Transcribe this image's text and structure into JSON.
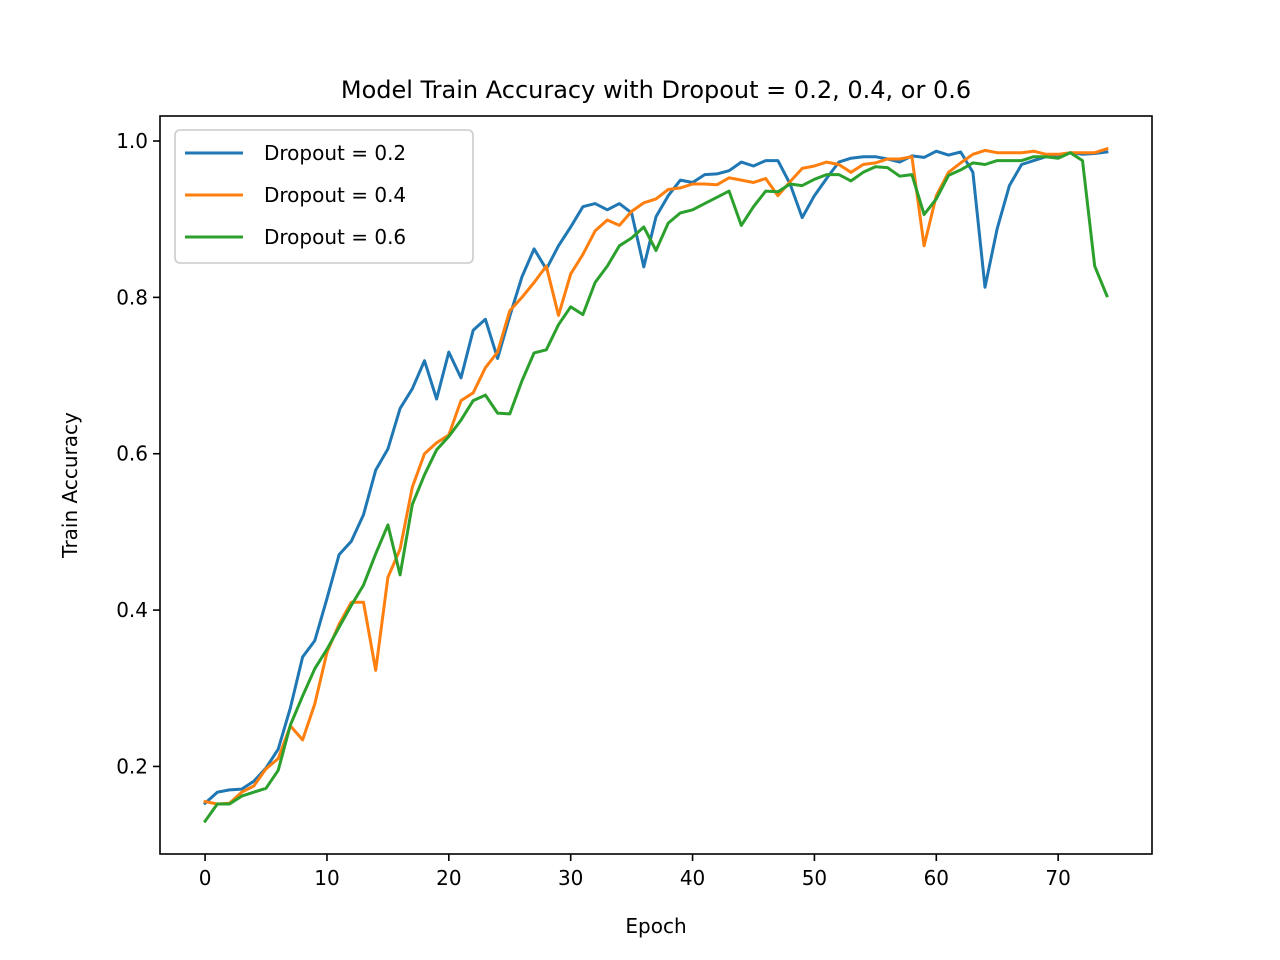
{
  "chart_data": {
    "type": "line",
    "title": "Model Train Accuracy with Dropout = 0.2, 0.4, or 0.6",
    "xlabel": "Epoch",
    "ylabel": "Train Accuracy",
    "xlim": [
      -3.7,
      77.7
    ],
    "ylim": [
      0.088,
      1.032
    ],
    "xticks": [
      0,
      10,
      20,
      30,
      40,
      50,
      60,
      70
    ],
    "yticks": [
      0.2,
      0.4,
      0.6,
      0.8,
      1.0
    ],
    "ytick_labels": [
      "0.2",
      "0.4",
      "0.6",
      "0.8",
      "1.0"
    ],
    "grid": false,
    "legend_position": "top-left",
    "series": [
      {
        "name": "Dropout = 0.2",
        "color": "#1f77b4",
        "values": [
          0.153,
          0.167,
          0.17,
          0.171,
          0.181,
          0.198,
          0.222,
          0.275,
          0.34,
          0.361,
          0.415,
          0.471,
          0.488,
          0.522,
          0.579,
          0.606,
          0.658,
          0.683,
          0.719,
          0.67,
          0.73,
          0.697,
          0.758,
          0.772,
          0.722,
          0.776,
          0.826,
          0.862,
          0.836,
          0.866,
          0.89,
          0.916,
          0.92,
          0.912,
          0.92,
          0.908,
          0.839,
          0.903,
          0.93,
          0.95,
          0.947,
          0.957,
          0.958,
          0.962,
          0.973,
          0.968,
          0.975,
          0.975,
          0.945,
          0.902,
          0.93,
          0.952,
          0.973,
          0.978,
          0.98,
          0.98,
          0.977,
          0.973,
          0.981,
          0.979,
          0.987,
          0.982,
          0.986,
          0.96,
          0.813,
          0.888,
          0.943,
          0.97,
          0.975,
          0.98,
          0.982,
          0.985,
          0.983,
          0.984,
          0.986
        ]
      },
      {
        "name": "Dropout = 0.4",
        "color": "#ff7f0e",
        "values": [
          0.155,
          0.152,
          0.153,
          0.167,
          0.175,
          0.197,
          0.21,
          0.252,
          0.234,
          0.28,
          0.346,
          0.382,
          0.41,
          0.41,
          0.323,
          0.442,
          0.478,
          0.557,
          0.6,
          0.614,
          0.624,
          0.668,
          0.678,
          0.71,
          0.73,
          0.783,
          0.8,
          0.819,
          0.84,
          0.777,
          0.83,
          0.855,
          0.885,
          0.899,
          0.892,
          0.91,
          0.921,
          0.926,
          0.938,
          0.94,
          0.945,
          0.945,
          0.944,
          0.953,
          0.95,
          0.947,
          0.952,
          0.93,
          0.948,
          0.965,
          0.968,
          0.973,
          0.97,
          0.96,
          0.97,
          0.972,
          0.977,
          0.977,
          0.98,
          0.866,
          0.93,
          0.96,
          0.972,
          0.983,
          0.988,
          0.985,
          0.985,
          0.985,
          0.987,
          0.983,
          0.983,
          0.985,
          0.985,
          0.985,
          0.99
        ]
      },
      {
        "name": "Dropout = 0.6",
        "color": "#2ca02c",
        "values": [
          0.13,
          0.152,
          0.152,
          0.162,
          0.167,
          0.172,
          0.195,
          0.253,
          0.29,
          0.325,
          0.35,
          0.378,
          0.406,
          0.432,
          0.472,
          0.509,
          0.445,
          0.535,
          0.573,
          0.605,
          0.622,
          0.643,
          0.668,
          0.675,
          0.652,
          0.651,
          0.693,
          0.729,
          0.733,
          0.765,
          0.788,
          0.778,
          0.819,
          0.84,
          0.866,
          0.876,
          0.89,
          0.86,
          0.895,
          0.908,
          0.912,
          0.92,
          0.928,
          0.936,
          0.892,
          0.916,
          0.936,
          0.935,
          0.945,
          0.943,
          0.951,
          0.957,
          0.957,
          0.949,
          0.96,
          0.967,
          0.966,
          0.955,
          0.957,
          0.906,
          0.926,
          0.956,
          0.963,
          0.972,
          0.97,
          0.975,
          0.975,
          0.975,
          0.98,
          0.98,
          0.978,
          0.985,
          0.975,
          0.84,
          0.802
        ]
      }
    ]
  }
}
